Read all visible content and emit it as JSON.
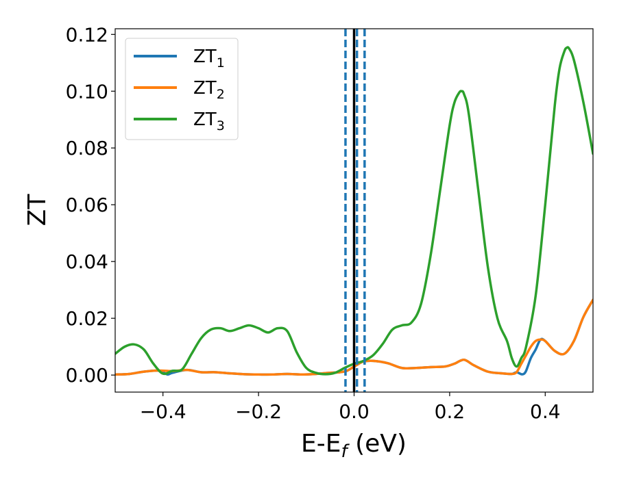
{
  "chart_data": {
    "type": "line",
    "xlabel": "E-E",
    "xlabel_sub": "f",
    "xlabel_unit": " (eV)",
    "ylabel": "ZT",
    "xlim": [
      -0.5,
      0.5
    ],
    "ylim": [
      -0.006,
      0.122
    ],
    "xticks": [
      -0.4,
      -0.2,
      0.0,
      0.2,
      0.4
    ],
    "xtick_labels": [
      "−0.4",
      "−0.2",
      "0.0",
      "0.2",
      "0.4"
    ],
    "yticks": [
      0.0,
      0.02,
      0.04,
      0.06,
      0.08,
      0.1,
      0.12
    ],
    "ytick_labels": [
      "0.00",
      "0.02",
      "0.04",
      "0.06",
      "0.08",
      "0.10",
      "0.12"
    ],
    "legend_position": "top-left",
    "vlines": [
      {
        "x": -0.018,
        "style": "dashed",
        "color": "#1f77b4"
      },
      {
        "x": 0.0,
        "style": "solid",
        "color": "#000000"
      },
      {
        "x": 0.006,
        "style": "dashed",
        "color": "#1f77b4"
      },
      {
        "x": 0.022,
        "style": "dashed",
        "color": "#1f77b4"
      }
    ],
    "series": [
      {
        "name": "ZT",
        "name_sub": "1",
        "color": "#1f77b4",
        "x": [
          -0.5,
          -0.47,
          -0.44,
          -0.41,
          -0.4,
          -0.39,
          -0.38,
          -0.35,
          -0.32,
          -0.29,
          -0.26,
          -0.23,
          -0.2,
          -0.17,
          -0.14,
          -0.11,
          -0.08,
          -0.05,
          -0.03,
          -0.015,
          0.0,
          0.01,
          0.02,
          0.04,
          0.07,
          0.1,
          0.13,
          0.16,
          0.19,
          0.21,
          0.23,
          0.25,
          0.28,
          0.31,
          0.33,
          0.34,
          0.35,
          0.355,
          0.36,
          0.37,
          0.38,
          0.39,
          0.4,
          0.42,
          0.44,
          0.46,
          0.48,
          0.5
        ],
        "y": [
          0.0002,
          0.0004,
          0.0012,
          0.0016,
          0.001,
          0.0002,
          0.0008,
          0.0018,
          0.001,
          0.001,
          0.0006,
          0.0003,
          0.0002,
          0.0002,
          0.0004,
          0.0002,
          0.0004,
          0.0008,
          0.001,
          0.0015,
          0.003,
          0.004,
          0.0048,
          0.005,
          0.0042,
          0.0025,
          0.0025,
          0.0028,
          0.003,
          0.004,
          0.0054,
          0.0035,
          0.0012,
          0.0006,
          0.0004,
          0.001,
          0.0003,
          0.0004,
          0.0015,
          0.006,
          0.009,
          0.0125,
          0.012,
          0.0085,
          0.0075,
          0.012,
          0.0205,
          0.0265
        ]
      },
      {
        "name": "ZT",
        "name_sub": "2",
        "color": "#ff7f0e",
        "x": [
          -0.5,
          -0.47,
          -0.44,
          -0.41,
          -0.38,
          -0.35,
          -0.32,
          -0.29,
          -0.26,
          -0.23,
          -0.2,
          -0.17,
          -0.14,
          -0.11,
          -0.08,
          -0.05,
          -0.03,
          -0.015,
          0.0,
          0.01,
          0.02,
          0.04,
          0.07,
          0.1,
          0.13,
          0.16,
          0.19,
          0.21,
          0.23,
          0.25,
          0.28,
          0.31,
          0.33,
          0.34,
          0.35,
          0.36,
          0.37,
          0.38,
          0.39,
          0.4,
          0.42,
          0.44,
          0.46,
          0.48,
          0.5
        ],
        "y": [
          0.0002,
          0.0004,
          0.0012,
          0.0016,
          0.0014,
          0.0018,
          0.001,
          0.001,
          0.0006,
          0.0003,
          0.0002,
          0.0002,
          0.0004,
          0.0002,
          0.0004,
          0.0008,
          0.001,
          0.0015,
          0.003,
          0.004,
          0.0048,
          0.005,
          0.0042,
          0.0025,
          0.0025,
          0.0028,
          0.003,
          0.004,
          0.0054,
          0.0035,
          0.0012,
          0.0006,
          0.0004,
          0.001,
          0.004,
          0.007,
          0.01,
          0.012,
          0.0125,
          0.012,
          0.0085,
          0.0075,
          0.012,
          0.0205,
          0.0265
        ]
      },
      {
        "name": "ZT",
        "name_sub": "3",
        "color": "#2ca02c",
        "x": [
          -0.5,
          -0.48,
          -0.46,
          -0.44,
          -0.42,
          -0.4,
          -0.38,
          -0.36,
          -0.34,
          -0.32,
          -0.3,
          -0.28,
          -0.26,
          -0.24,
          -0.22,
          -0.2,
          -0.18,
          -0.16,
          -0.14,
          -0.12,
          -0.1,
          -0.08,
          -0.06,
          -0.04,
          -0.02,
          0.0,
          0.02,
          0.04,
          0.06,
          0.08,
          0.1,
          0.12,
          0.14,
          0.16,
          0.18,
          0.2,
          0.21,
          0.22,
          0.225,
          0.23,
          0.24,
          0.26,
          0.28,
          0.3,
          0.32,
          0.33,
          0.34,
          0.35,
          0.36,
          0.38,
          0.4,
          0.42,
          0.43,
          0.44,
          0.445,
          0.45,
          0.46,
          0.48,
          0.5
        ],
        "y": [
          0.0075,
          0.01,
          0.0108,
          0.009,
          0.004,
          0.0005,
          0.0015,
          0.002,
          0.0075,
          0.013,
          0.016,
          0.0165,
          0.0155,
          0.0165,
          0.0175,
          0.0165,
          0.015,
          0.0165,
          0.0155,
          0.008,
          0.0025,
          0.0008,
          0.0003,
          0.0008,
          0.0025,
          0.004,
          0.005,
          0.007,
          0.011,
          0.016,
          0.0175,
          0.0185,
          0.025,
          0.042,
          0.065,
          0.088,
          0.096,
          0.0995,
          0.1,
          0.099,
          0.092,
          0.065,
          0.038,
          0.02,
          0.012,
          0.006,
          0.003,
          0.006,
          0.01,
          0.028,
          0.06,
          0.095,
          0.108,
          0.114,
          0.1153,
          0.115,
          0.111,
          0.096,
          0.078
        ]
      }
    ]
  }
}
